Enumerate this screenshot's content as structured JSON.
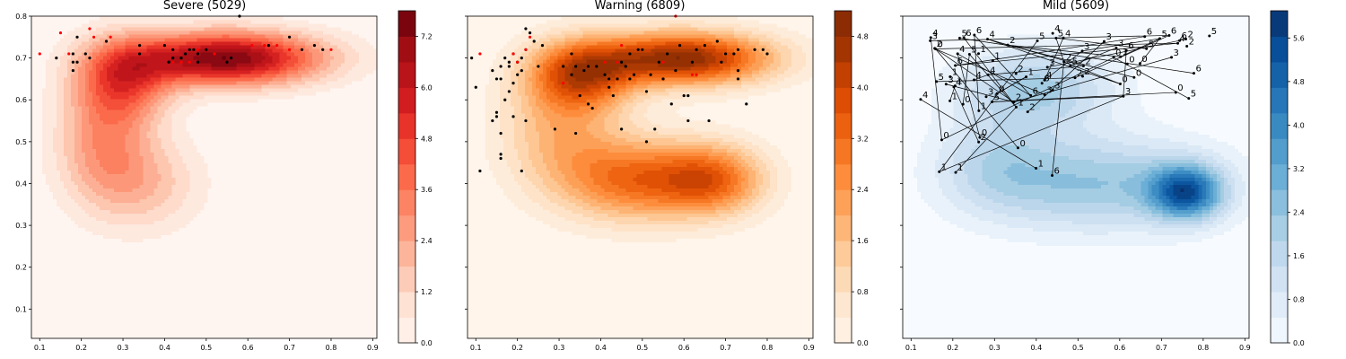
{
  "chart_data": [
    {
      "type": "contour",
      "title": "Severe (5029)",
      "colormap": "Reds",
      "xlim": [
        0.08,
        0.91
      ],
      "ylim": [
        0.03,
        0.8
      ],
      "x_ticks": [
        "0.1",
        "0.2",
        "0.3",
        "0.4",
        "0.5",
        "0.6",
        "0.7",
        "0.8",
        "0.9"
      ],
      "y_ticks": [
        "0.1",
        "0.2",
        "0.3",
        "0.4",
        "0.5",
        "0.6",
        "0.7",
        "0.8"
      ],
      "colorbar": {
        "min": 0.0,
        "max": 7.8,
        "ticks": [
          "0.0",
          "1.2",
          "2.4",
          "3.6",
          "4.8",
          "6.0",
          "7.2"
        ]
      },
      "density_peaks": [
        {
          "x": 0.55,
          "y": 0.7,
          "sx": 0.16,
          "sy": 0.045,
          "w": 1.0
        },
        {
          "x": 0.3,
          "y": 0.65,
          "sx": 0.08,
          "sy": 0.07,
          "w": 0.55
        },
        {
          "x": 0.25,
          "y": 0.5,
          "sx": 0.08,
          "sy": 0.1,
          "w": 0.35
        },
        {
          "x": 0.35,
          "y": 0.4,
          "sx": 0.1,
          "sy": 0.08,
          "w": 0.25
        }
      ],
      "points_black": [
        [
          0.14,
          0.7
        ],
        [
          0.18,
          0.71
        ],
        [
          0.19,
          0.75
        ],
        [
          0.18,
          0.69
        ],
        [
          0.18,
          0.67
        ],
        [
          0.19,
          0.69
        ],
        [
          0.21,
          0.71
        ],
        [
          0.22,
          0.7
        ],
        [
          0.26,
          0.74
        ],
        [
          0.34,
          0.73
        ],
        [
          0.34,
          0.71
        ],
        [
          0.4,
          0.73
        ],
        [
          0.42,
          0.72
        ],
        [
          0.44,
          0.7
        ],
        [
          0.45,
          0.71
        ],
        [
          0.46,
          0.72
        ],
        [
          0.47,
          0.72
        ],
        [
          0.48,
          0.71
        ],
        [
          0.48,
          0.69
        ],
        [
          0.5,
          0.72
        ],
        [
          0.55,
          0.69
        ],
        [
          0.56,
          0.7
        ],
        [
          0.58,
          0.8
        ],
        [
          0.65,
          0.73
        ],
        [
          0.7,
          0.75
        ],
        [
          0.73,
          0.72
        ],
        [
          0.76,
          0.73
        ],
        [
          0.78,
          0.72
        ],
        [
          0.42,
          0.7
        ],
        [
          0.41,
          0.69
        ]
      ],
      "points_red": [
        [
          0.1,
          0.71
        ],
        [
          0.15,
          0.76
        ],
        [
          0.17,
          0.71
        ],
        [
          0.22,
          0.77
        ],
        [
          0.23,
          0.75
        ],
        [
          0.27,
          0.75
        ],
        [
          0.42,
          0.69
        ],
        [
          0.44,
          0.69
        ],
        [
          0.46,
          0.69
        ],
        [
          0.48,
          0.72
        ],
        [
          0.52,
          0.71
        ],
        [
          0.61,
          0.73
        ],
        [
          0.64,
          0.73
        ],
        [
          0.67,
          0.73
        ],
        [
          0.7,
          0.72
        ],
        [
          0.8,
          0.72
        ]
      ]
    },
    {
      "type": "contour",
      "title": "Warning (6809)",
      "colormap": "Oranges",
      "xlim": [
        0.08,
        0.91
      ],
      "ylim": [
        0.03,
        0.8
      ],
      "x_ticks": [
        "0.1",
        "0.2",
        "0.3",
        "0.4",
        "0.5",
        "0.6",
        "0.7",
        "0.8",
        "0.9"
      ],
      "y_ticks": [],
      "colorbar": {
        "min": 0.0,
        "max": 5.2,
        "ticks": [
          "0.0",
          "0.8",
          "1.6",
          "2.4",
          "3.2",
          "4.0",
          "4.8"
        ]
      },
      "density_peaks": [
        {
          "x": 0.6,
          "y": 0.7,
          "sx": 0.15,
          "sy": 0.045,
          "w": 1.0
        },
        {
          "x": 0.35,
          "y": 0.66,
          "sx": 0.09,
          "sy": 0.06,
          "w": 0.7
        },
        {
          "x": 0.48,
          "y": 0.41,
          "sx": 0.12,
          "sy": 0.07,
          "w": 0.62
        },
        {
          "x": 0.67,
          "y": 0.41,
          "sx": 0.09,
          "sy": 0.06,
          "w": 0.62
        },
        {
          "x": 0.3,
          "y": 0.52,
          "sx": 0.1,
          "sy": 0.1,
          "w": 0.35
        }
      ],
      "points_black": [
        [
          0.09,
          0.7
        ],
        [
          0.1,
          0.63
        ],
        [
          0.11,
          0.43
        ],
        [
          0.14,
          0.67
        ],
        [
          0.14,
          0.55
        ],
        [
          0.15,
          0.57
        ],
        [
          0.15,
          0.56
        ],
        [
          0.15,
          0.65
        ],
        [
          0.16,
          0.65
        ],
        [
          0.16,
          0.68
        ],
        [
          0.16,
          0.52
        ],
        [
          0.16,
          0.47
        ],
        [
          0.16,
          0.46
        ],
        [
          0.17,
          0.6
        ],
        [
          0.17,
          0.7
        ],
        [
          0.18,
          0.69
        ],
        [
          0.18,
          0.68
        ],
        [
          0.18,
          0.62
        ],
        [
          0.19,
          0.71
        ],
        [
          0.19,
          0.64
        ],
        [
          0.19,
          0.56
        ],
        [
          0.2,
          0.69
        ],
        [
          0.2,
          0.66
        ],
        [
          0.21,
          0.7
        ],
        [
          0.21,
          0.67
        ],
        [
          0.21,
          0.43
        ],
        [
          0.22,
          0.55
        ],
        [
          0.22,
          0.72
        ],
        [
          0.22,
          0.77
        ],
        [
          0.23,
          0.76
        ],
        [
          0.24,
          0.74
        ],
        [
          0.25,
          0.68
        ],
        [
          0.26,
          0.73
        ],
        [
          0.29,
          0.53
        ],
        [
          0.31,
          0.68
        ],
        [
          0.33,
          0.66
        ],
        [
          0.33,
          0.71
        ],
        [
          0.34,
          0.52
        ],
        [
          0.34,
          0.68
        ],
        [
          0.35,
          0.61
        ],
        [
          0.36,
          0.67
        ],
        [
          0.37,
          0.68
        ],
        [
          0.37,
          0.59
        ],
        [
          0.38,
          0.58
        ],
        [
          0.39,
          0.68
        ],
        [
          0.41,
          0.66
        ],
        [
          0.42,
          0.65
        ],
        [
          0.42,
          0.63
        ],
        [
          0.43,
          0.61
        ],
        [
          0.44,
          0.65
        ],
        [
          0.45,
          0.69
        ],
        [
          0.45,
          0.53
        ],
        [
          0.46,
          0.68
        ],
        [
          0.47,
          0.71
        ],
        [
          0.47,
          0.65
        ],
        [
          0.48,
          0.66
        ],
        [
          0.49,
          0.72
        ],
        [
          0.5,
          0.72
        ],
        [
          0.51,
          0.62
        ],
        [
          0.51,
          0.5
        ],
        [
          0.52,
          0.66
        ],
        [
          0.53,
          0.53
        ],
        [
          0.54,
          0.69
        ],
        [
          0.55,
          0.65
        ],
        [
          0.56,
          0.71
        ],
        [
          0.57,
          0.59
        ],
        [
          0.58,
          0.67
        ],
        [
          0.59,
          0.73
        ],
        [
          0.6,
          0.61
        ],
        [
          0.61,
          0.61
        ],
        [
          0.61,
          0.55
        ],
        [
          0.62,
          0.69
        ],
        [
          0.63,
          0.72
        ],
        [
          0.65,
          0.73
        ],
        [
          0.66,
          0.55
        ],
        [
          0.68,
          0.74
        ],
        [
          0.69,
          0.69
        ],
        [
          0.7,
          0.71
        ],
        [
          0.72,
          0.71
        ],
        [
          0.73,
          0.67
        ],
        [
          0.73,
          0.65
        ],
        [
          0.73,
          0.72
        ],
        [
          0.75,
          0.59
        ],
        [
          0.77,
          0.72
        ],
        [
          0.79,
          0.72
        ],
        [
          0.8,
          0.71
        ]
      ],
      "points_red": [
        [
          0.11,
          0.71
        ],
        [
          0.19,
          0.71
        ],
        [
          0.2,
          0.69
        ],
        [
          0.22,
          0.72
        ],
        [
          0.23,
          0.75
        ],
        [
          0.31,
          0.64
        ],
        [
          0.41,
          0.69
        ],
        [
          0.44,
          0.69
        ],
        [
          0.45,
          0.73
        ],
        [
          0.55,
          0.69
        ],
        [
          0.58,
          0.8
        ],
        [
          0.62,
          0.66
        ],
        [
          0.63,
          0.66
        ]
      ]
    },
    {
      "type": "contour",
      "title": "Mild (5609)",
      "colormap": "Blues",
      "xlim": [
        0.08,
        0.91
      ],
      "ylim": [
        0.03,
        0.8
      ],
      "x_ticks": [
        "0.1",
        "0.2",
        "0.3",
        "0.4",
        "0.5",
        "0.6",
        "0.7",
        "0.8",
        "0.9"
      ],
      "y_ticks": [],
      "colorbar": {
        "min": 0.0,
        "max": 6.1,
        "ticks": [
          "0.0",
          "0.8",
          "1.6",
          "2.4",
          "3.2",
          "4.0",
          "4.8",
          "5.6"
        ]
      },
      "density_peaks": [
        {
          "x": 0.76,
          "y": 0.38,
          "sx": 0.06,
          "sy": 0.045,
          "w": 1.0
        },
        {
          "x": 0.55,
          "y": 0.4,
          "sx": 0.2,
          "sy": 0.08,
          "w": 0.55
        },
        {
          "x": 0.4,
          "y": 0.63,
          "sx": 0.13,
          "sy": 0.07,
          "w": 0.5
        },
        {
          "x": 0.3,
          "y": 0.45,
          "sx": 0.1,
          "sy": 0.08,
          "w": 0.3
        }
      ],
      "annotations": [
        "1",
        "2",
        "0",
        "4",
        "3",
        "5",
        "6"
      ]
    }
  ]
}
